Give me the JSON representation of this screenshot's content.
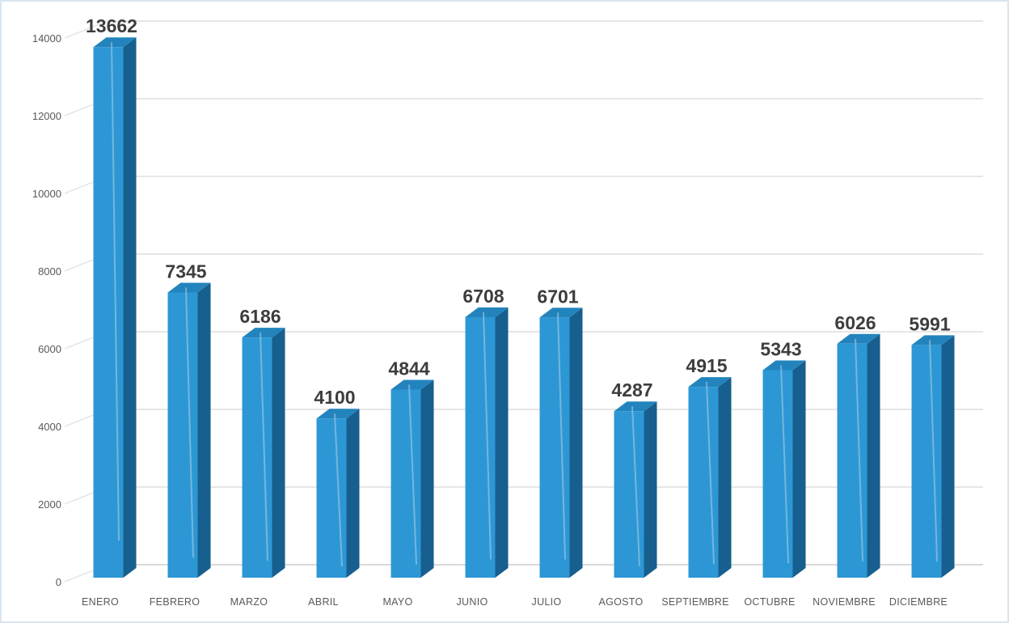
{
  "chart_data": {
    "type": "bar",
    "style": "3d-column",
    "title": "",
    "xlabel": "",
    "ylabel": "",
    "categories": [
      "ENERO",
      "FEBRERO",
      "MARZO",
      "ABRIL",
      "MAYO",
      "JUNIO",
      "JULIO",
      "AGOSTO",
      "SEPTIEMBRE",
      "OCTUBRE",
      "NOVIEMBRE",
      "DICIEMBRE"
    ],
    "values": [
      13662,
      7345,
      6186,
      4100,
      4844,
      6708,
      6701,
      4287,
      4915,
      5343,
      6026,
      5991
    ],
    "value_labels_shown": true,
    "ylim": [
      0,
      14000
    ],
    "yticks": [
      0,
      2000,
      4000,
      6000,
      8000,
      10000,
      12000,
      14000
    ],
    "grid": true,
    "legend": false,
    "colors": {
      "bar_front": "#2d97d5",
      "bar_top": "#2384bd",
      "bar_side": "#175f8e",
      "bar_streak": "#aed0e4",
      "gridline": "#e6e6e6",
      "floor_line": "#d9d9d9",
      "axis_label": "#595959",
      "value_label": "#3d3d3d",
      "frame_border": "#d9e5f1",
      "background": "#ffffff"
    }
  }
}
